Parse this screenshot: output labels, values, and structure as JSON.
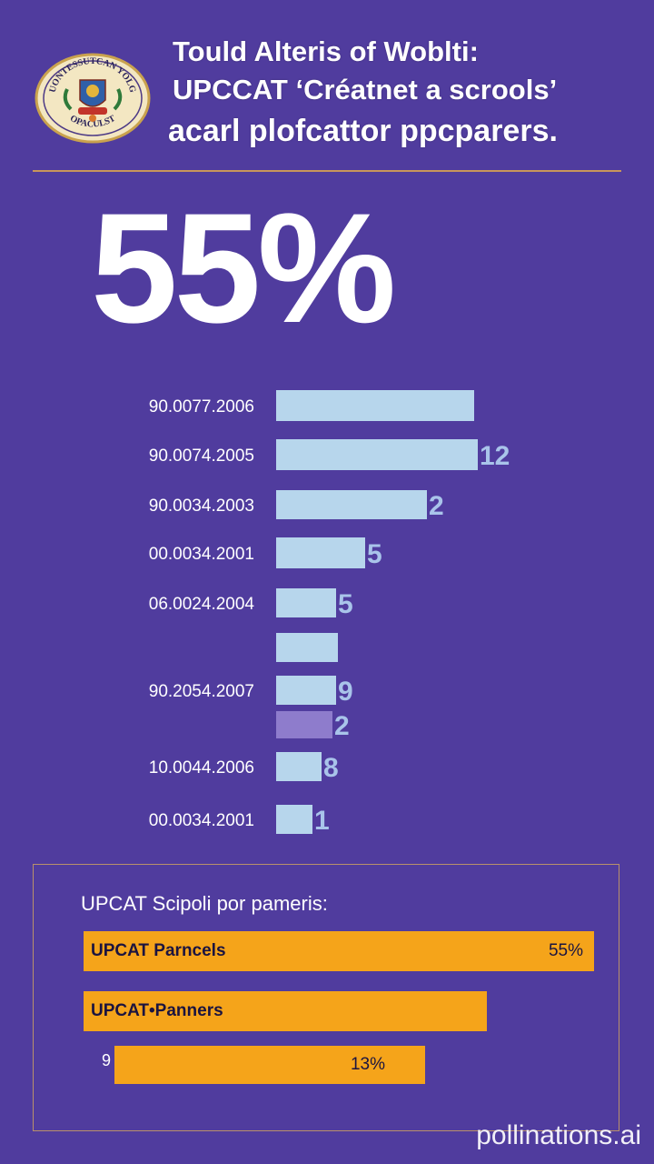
{
  "header": {
    "title_lines": [
      "Tould Alteris of Woblti:",
      "UPCCAT ‘Créatnet a scrools’",
      "acarl plofcattor ppcparers."
    ]
  },
  "seal": {
    "top_text": "UONTESSUTCAN YOLG",
    "bottom_text": "OPACULST"
  },
  "big_stat": "55%",
  "chart_data": {
    "type": "bar",
    "orientation": "horizontal",
    "categories": [
      "90.0077.2006",
      "90.0074.2005",
      "90.0034.2003",
      "00.0034.2001",
      "06.0024.2004",
      "",
      "90.2054.2007",
      "",
      "10.0044.2006",
      "00.0034.2001"
    ],
    "bars": [
      {
        "length": 218,
        "value_label": ""
      },
      {
        "length": 222,
        "value_label": "12"
      },
      {
        "length": 166,
        "value_label": "2"
      },
      {
        "length": 98,
        "value_label": "5"
      },
      {
        "length": 66,
        "value_label": "5"
      },
      {
        "length": 68,
        "value_label": ""
      },
      {
        "length": 66,
        "value_label": "9"
      },
      {
        "length": 62,
        "value_label": "2"
      },
      {
        "length": 50,
        "value_label": "8"
      },
      {
        "length": 40,
        "value_label": "1"
      }
    ],
    "highlight_index": 7,
    "colors": {
      "bar": "#b7d6ec",
      "bar_highlight": "#8e7ccc",
      "value_label": "#a9c4ea",
      "category_label": "#ffffff"
    }
  },
  "panel": {
    "heading": "UPCAT Scipoli por pameris:",
    "bars": [
      {
        "label": "UPCAT Parncels",
        "value": "55%",
        "fill": 0.55
      },
      {
        "label": "UPCAT•Panners",
        "value": "",
        "fill": 0.44
      },
      {
        "label": "",
        "value": "13%",
        "fill": 0.13
      }
    ],
    "small_mark": "9"
  },
  "watermark": "pollinations.ai",
  "colors": {
    "background": "#503c9e",
    "accent": "#f5a41a",
    "rule": "#c8955a"
  }
}
